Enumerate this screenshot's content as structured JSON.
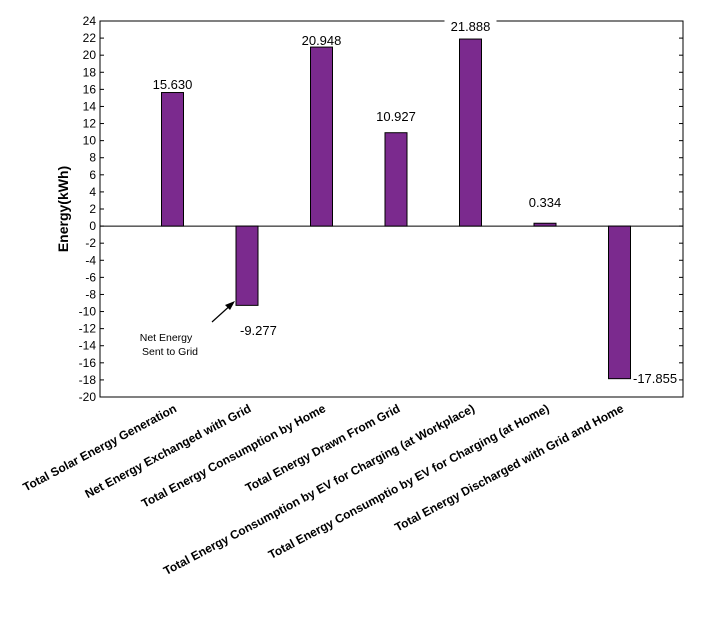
{
  "chart_data": {
    "type": "bar",
    "title": "",
    "xlabel": "",
    "ylabel": "Energy(kWh)",
    "ylim": [
      -20,
      24
    ],
    "ytick_step": 2,
    "grid": false,
    "bar_color": "#7b2a8e",
    "categories": [
      "Total Solar Energy Generation",
      "Net Energy Exchanged with Grid",
      "Total Energy Consumption by Home",
      "Total Energy Drawn From Grid",
      "Total Energy Consumption by EV for Charging (at Workplace)",
      "Total Energy Consumptio by EV for Charging (at Home)",
      "Total Energy Discharged with Grid and Home"
    ],
    "values": [
      15.63,
      -9.277,
      20.948,
      10.927,
      21.888,
      0.334,
      -17.855
    ],
    "data_labels": [
      "15.630",
      "-9.277",
      "20.948",
      "10.927",
      "21.888",
      "0.334",
      "-17.855"
    ],
    "annotation": {
      "lines": [
        "Net Energy",
        "Sent to Grid"
      ],
      "target_category_index": 1
    }
  }
}
